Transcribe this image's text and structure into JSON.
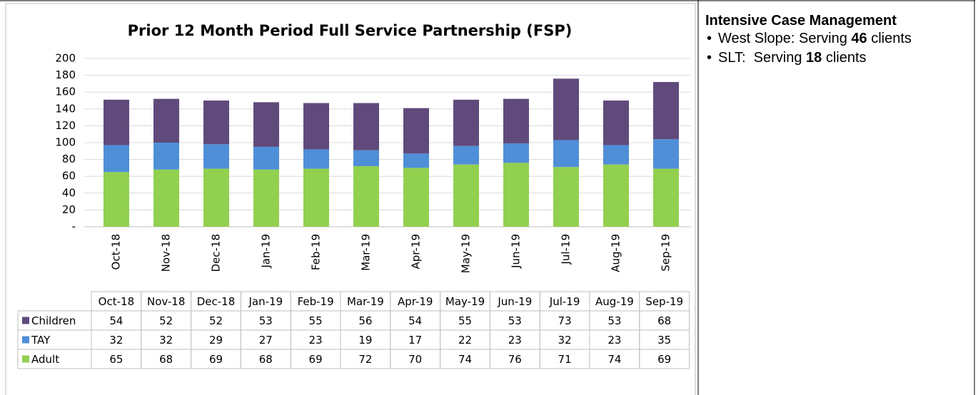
{
  "chart_data": {
    "type": "stacked-bar",
    "title": "Prior 12 Month Period Full Service Partnership (FSP)",
    "categories": [
      "Oct-18",
      "Nov-18",
      "Dec-18",
      "Jan-19",
      "Feb-19",
      "Mar-19",
      "Apr-19",
      "May-19",
      "Jun-19",
      "Jul-19",
      "Aug-19",
      "Sep-19"
    ],
    "series": [
      {
        "name": "Children",
        "color": "#604a7b",
        "values": [
          54,
          52,
          52,
          53,
          55,
          56,
          54,
          55,
          53,
          73,
          53,
          68
        ]
      },
      {
        "name": "TAY",
        "color": "#4f8fd8",
        "values": [
          32,
          32,
          29,
          27,
          23,
          19,
          17,
          22,
          23,
          32,
          23,
          35
        ]
      },
      {
        "name": "Adult",
        "color": "#92d050",
        "values": [
          65,
          68,
          69,
          68,
          69,
          72,
          70,
          74,
          76,
          71,
          74,
          69
        ]
      }
    ],
    "ylim": [
      0,
      200
    ],
    "yticks": [
      {
        "value": 0,
        "label": "-"
      },
      20,
      40,
      60,
      80,
      100,
      120,
      140,
      160,
      180,
      200
    ],
    "grid": true
  },
  "sidebar": {
    "title": "Intensive Case Management",
    "items": [
      {
        "text": "West Slope: Serving",
        "count": 46,
        "suffix": "clients"
      },
      {
        "text": "SLT:  Serving",
        "count": 18,
        "suffix": "clients"
      }
    ]
  }
}
